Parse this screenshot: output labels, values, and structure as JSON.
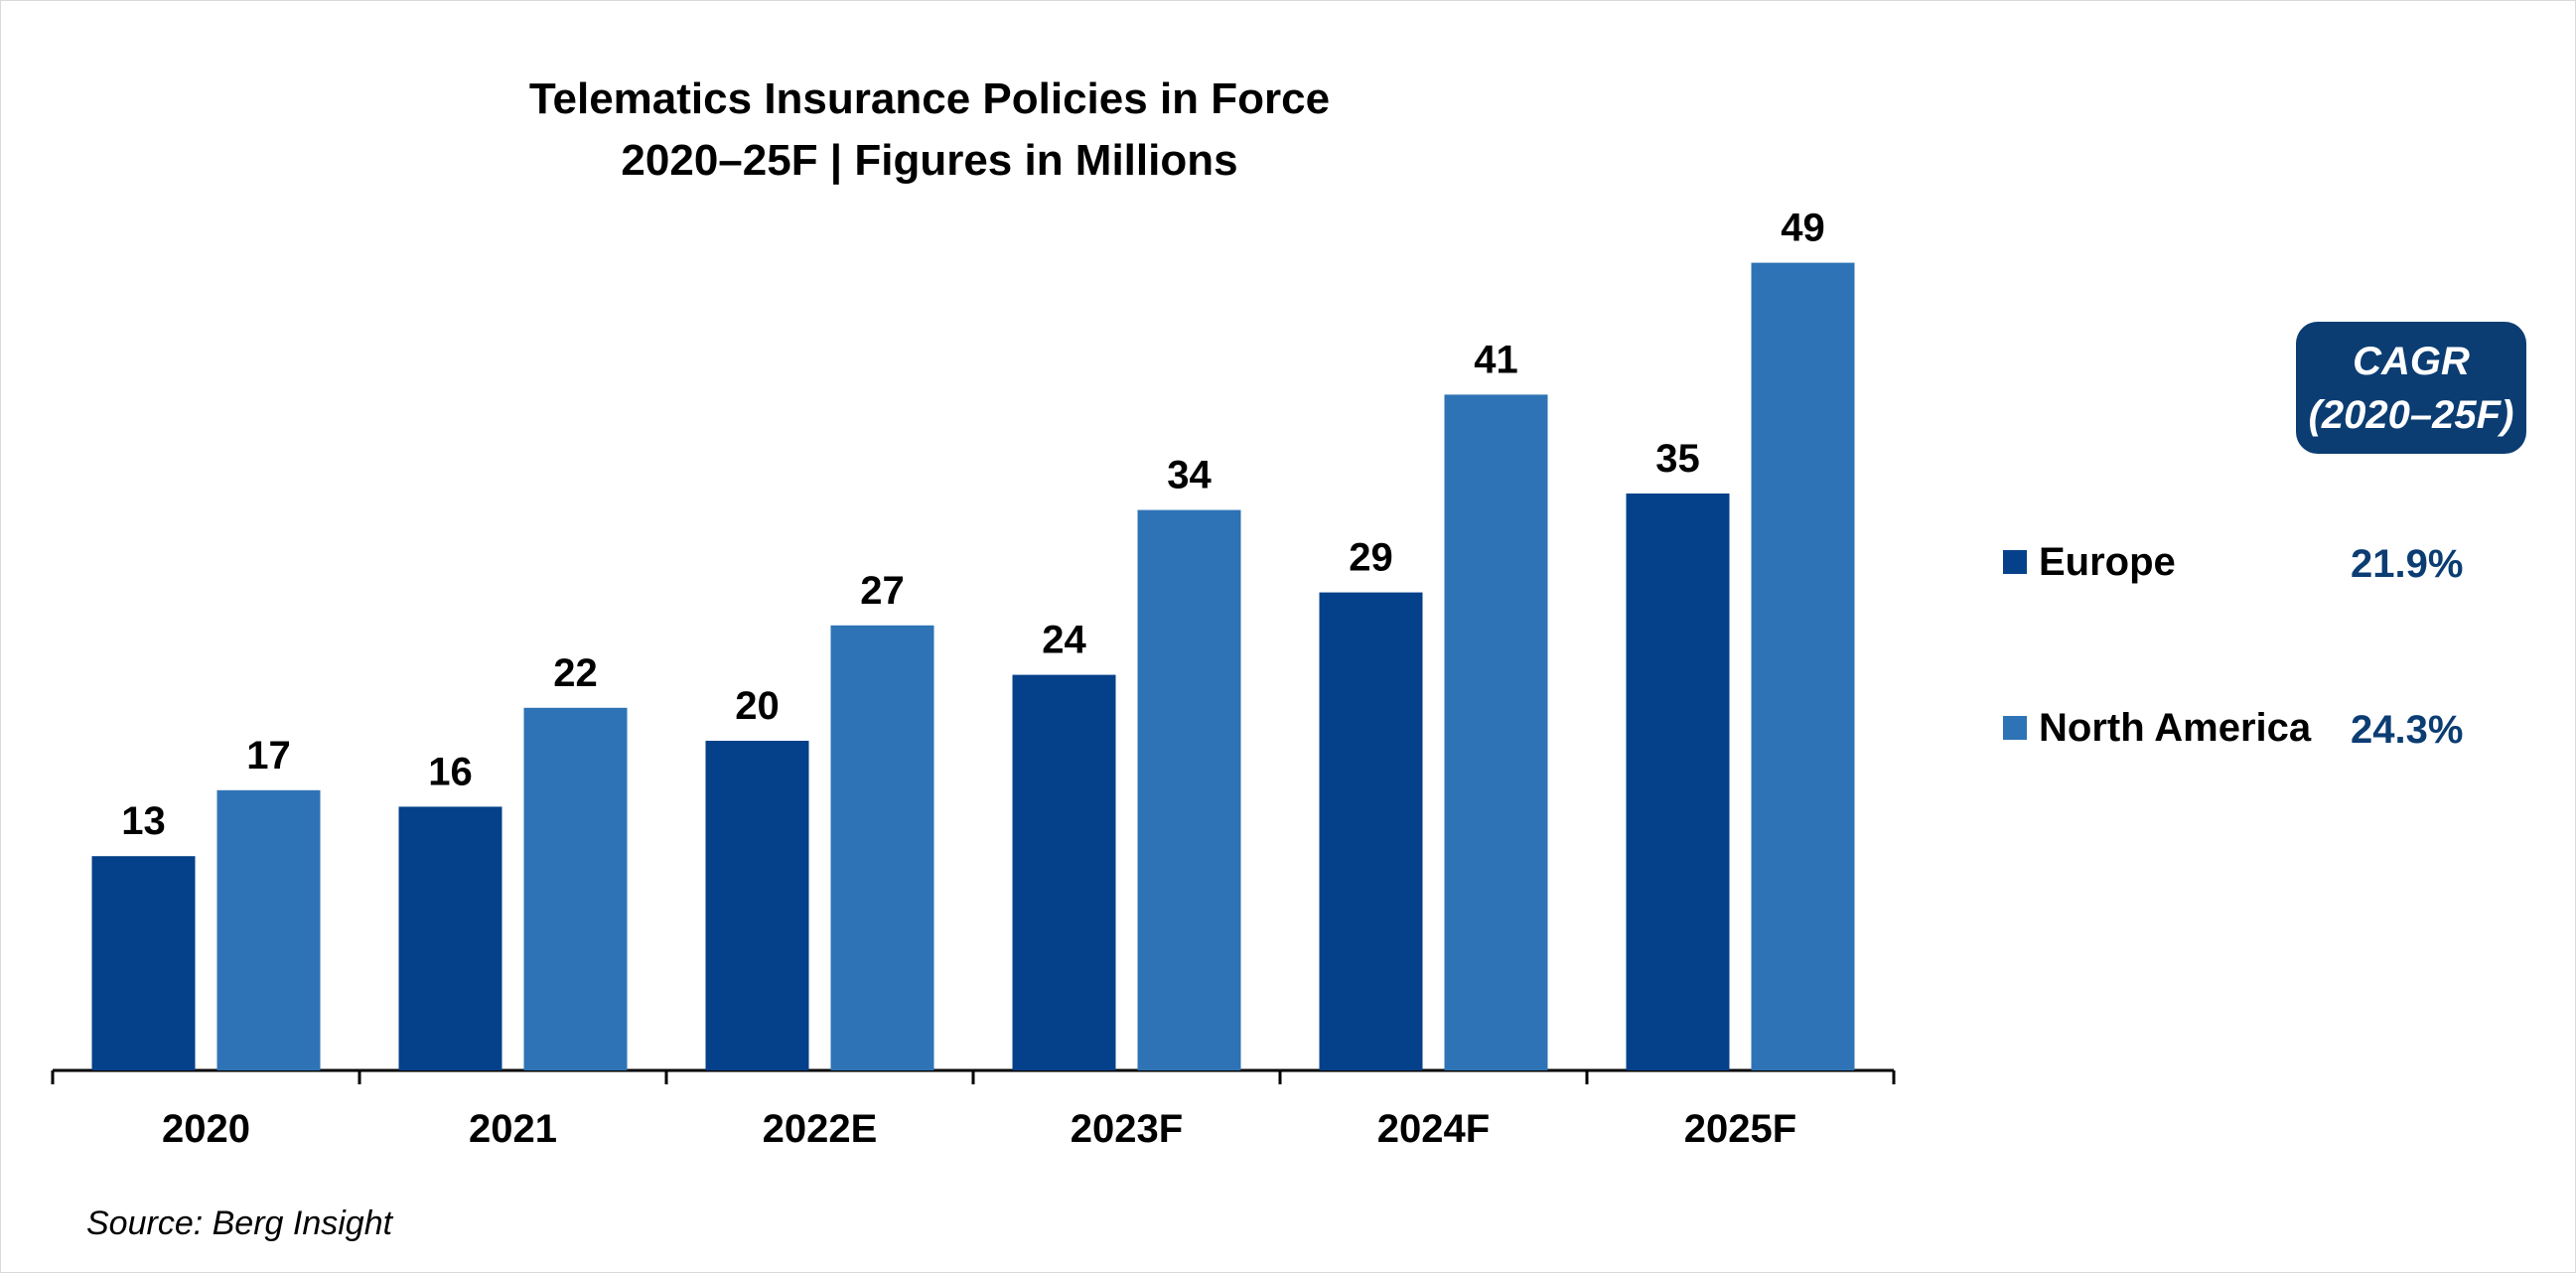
{
  "chart_data": {
    "type": "bar",
    "title": "Telematics Insurance Policies in Force",
    "subtitle": "2020–25F | Figures in Millions",
    "categories": [
      "2020",
      "2021",
      "2022E",
      "2023F",
      "2024F",
      "2025F"
    ],
    "series": [
      {
        "name": "Europe",
        "values": [
          13,
          16,
          20,
          24,
          29,
          35
        ],
        "color": "#05418a",
        "cagr": "21.9%"
      },
      {
        "name": "North America",
        "values": [
          17,
          22,
          27,
          34,
          41,
          49
        ],
        "color": "#2e73b6",
        "cagr": "24.3%"
      }
    ],
    "ylim": [
      0,
      50
    ],
    "grid": false,
    "data_labels": true,
    "legend_position": "right",
    "cagr_header": [
      "CAGR",
      "(2020–25F)"
    ],
    "source": "Source: Berg Insight"
  }
}
